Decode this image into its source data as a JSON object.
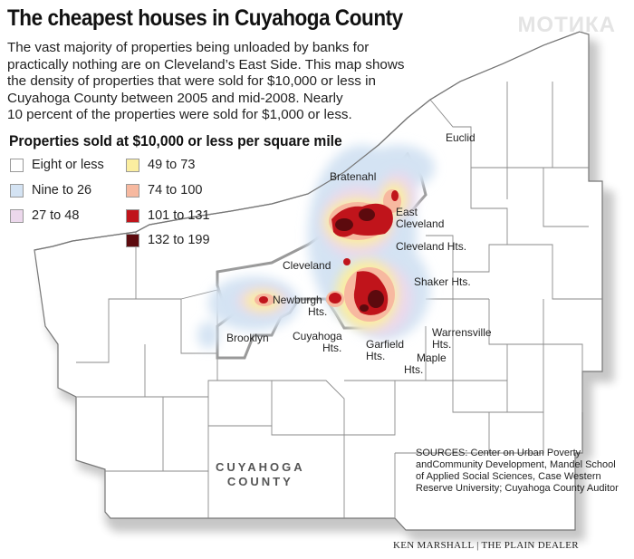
{
  "header": {
    "title": "The cheapest houses in Cuyahoga County",
    "watermark": "МОТИКА",
    "intro_lines": [
      "The vast majority of properties being unloaded by banks for",
      "practically nothing are on Cleveland’s East Side. This map shows",
      "the density of properties that were sold for $10,000 or less in",
      "Cuyahoga County between 2005 and mid-2008. Nearly",
      "10 percent of the properties were sold for $1,000 or less."
    ]
  },
  "legend": {
    "title": "Properties sold at $10,000 or less per square mile",
    "items": [
      {
        "label": "Eight or less",
        "color": "#ffffff"
      },
      {
        "label": "Nine to 26",
        "color": "#d4e3f3"
      },
      {
        "label": "27 to 48",
        "color": "#ecd8ec"
      },
      {
        "label": "49 to 73",
        "color": "#fbeea0"
      },
      {
        "label": "74 to 100",
        "color": "#f7b9a0"
      },
      {
        "label": "101 to 131",
        "color": "#c0141b"
      },
      {
        "label": "132 to 199",
        "color": "#5c0a0e"
      }
    ]
  },
  "places": {
    "euclid": "Euclid",
    "bratenahl": "Bratenahl",
    "east_cleveland_1": "East",
    "east_cleveland_2": "Cleveland",
    "cleveland_hts": "Cleveland Hts.",
    "cleveland": "Cleveland",
    "shaker_hts": "Shaker Hts.",
    "newburgh_1": "Newburgh",
    "newburgh_2": "Hts.",
    "brooklyn": "Brooklyn",
    "cuyahoga_hts_1": "Cuyahoga",
    "cuyahoga_hts_2": "Hts.",
    "garfield_1": "Garfield",
    "garfield_2": "Hts.",
    "warrensville_1": "Warrensville",
    "warrensville_2": "Hts.",
    "maple_1": "Maple",
    "maple_2": "Hts."
  },
  "county": {
    "line1": "CUYAHOGA",
    "line2": "COUNTY"
  },
  "sources": "SOURCES: Center on Urban Poverty andCommunity Development, Mandel School of Applied Social Sciences, Case Western Reserve University; Cuyahoga County Auditor",
  "credit": "KEN MARSHALL | THE PLAIN DEALER"
}
